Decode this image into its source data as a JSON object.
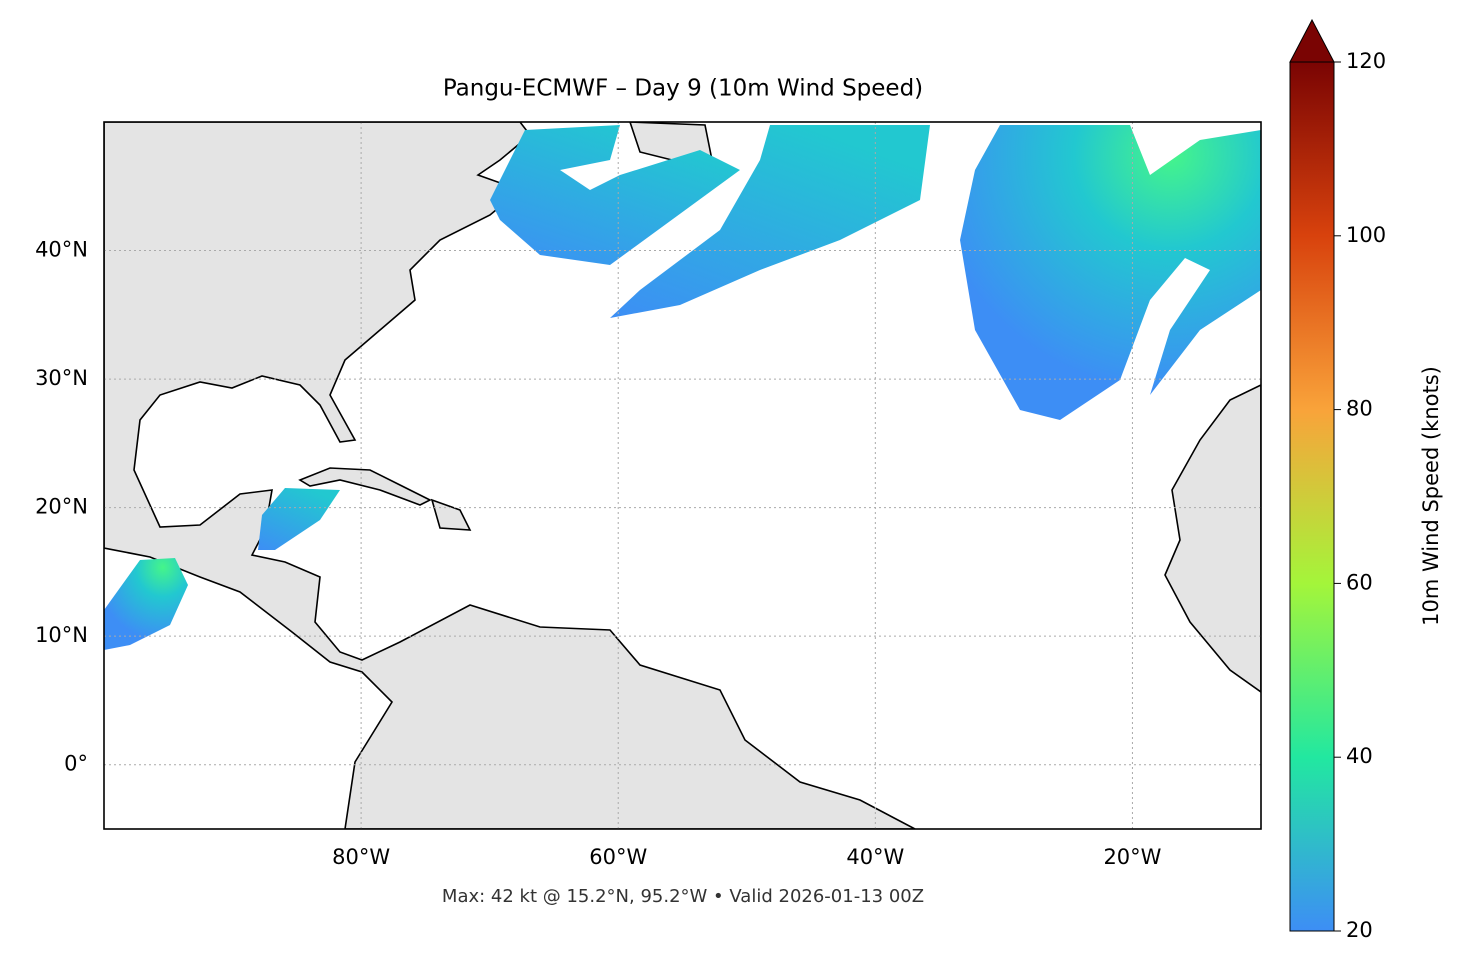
{
  "chart_data": {
    "type": "map",
    "title": "Pangu-ECMWF – Day 9 (10m Wind Speed)",
    "footnote": "Max: 42 kt @ 15.2°N, 95.2°W • Valid 2026-01-13 00Z",
    "xlim": [
      -100,
      -10
    ],
    "ylim": [
      -5,
      50
    ],
    "xticks": [
      {
        "value": -80,
        "label": "80°W"
      },
      {
        "value": -60,
        "label": "60°W"
      },
      {
        "value": -40,
        "label": "40°W"
      },
      {
        "value": -20,
        "label": "20°W"
      }
    ],
    "yticks": [
      {
        "value": 0,
        "label": "0°"
      },
      {
        "value": 10,
        "label": "10°N"
      },
      {
        "value": 20,
        "label": "20°N"
      },
      {
        "value": 30,
        "label": "30°N"
      },
      {
        "value": 40,
        "label": "40°N"
      }
    ],
    "grid": true,
    "colorbar": {
      "label": "10m Wind Speed (knots)",
      "lim": [
        20,
        120
      ],
      "ticks": [
        20,
        40,
        60,
        80,
        100,
        120
      ],
      "colors": [
        "#3d8ef5",
        "#22e8a0",
        "#a4f53a",
        "#f9a33a",
        "#d8420d",
        "#7a0403"
      ]
    }
  }
}
